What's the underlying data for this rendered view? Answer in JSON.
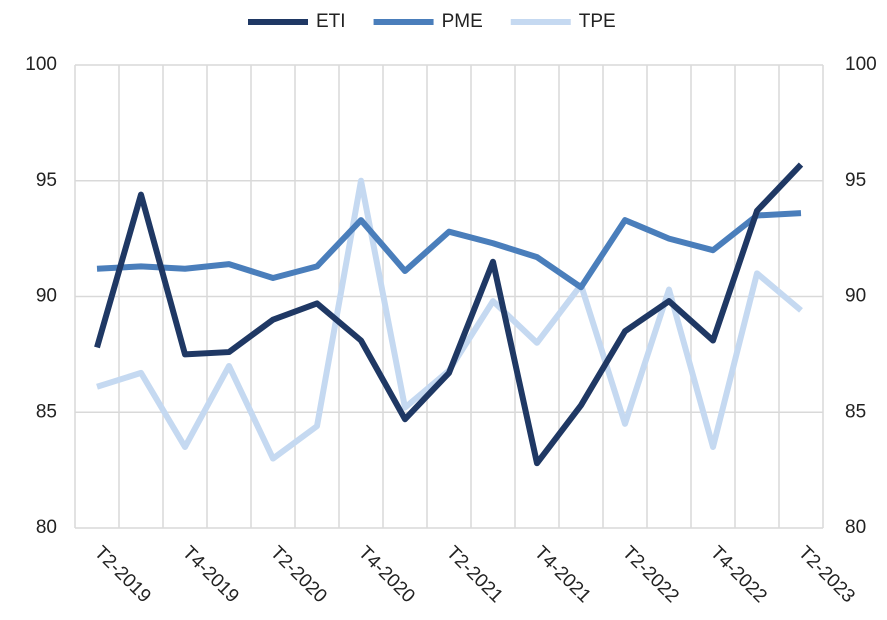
{
  "chart_data": {
    "type": "line",
    "categories": [
      "T2-2019",
      null,
      "T4-2019",
      null,
      "T2-2020",
      null,
      "T4-2020",
      null,
      "T2-2021",
      null,
      "T4-2021",
      null,
      "T2-2022",
      null,
      "T4-2022",
      null,
      "T2-2023"
    ],
    "series": [
      {
        "name": "ETI",
        "color": "#1f3864",
        "values": [
          87.8,
          94.4,
          87.5,
          87.6,
          89.0,
          89.7,
          88.1,
          84.7,
          86.7,
          91.5,
          82.8,
          85.3,
          88.5,
          89.8,
          88.1,
          93.7,
          95.7
        ]
      },
      {
        "name": "PME",
        "color": "#4a7ebb",
        "values": [
          91.2,
          91.3,
          91.2,
          91.4,
          90.8,
          91.3,
          93.3,
          91.1,
          92.8,
          92.3,
          91.7,
          90.4,
          93.3,
          92.5,
          92.0,
          93.5,
          93.6
        ]
      },
      {
        "name": "TPE",
        "color": "#c5d9f1",
        "values": [
          86.1,
          86.7,
          83.5,
          87.0,
          83.0,
          84.4,
          95.0,
          85.2,
          86.8,
          89.8,
          88.0,
          90.5,
          84.5,
          90.3,
          83.5,
          91.0,
          89.4
        ]
      }
    ],
    "ylim": [
      80,
      100
    ],
    "yticks": [
      80,
      85,
      90,
      95,
      100
    ],
    "y2lim": [
      80,
      100
    ],
    "y2ticks": [
      80,
      85,
      90,
      95,
      100
    ],
    "grid": true,
    "legend": "top"
  }
}
